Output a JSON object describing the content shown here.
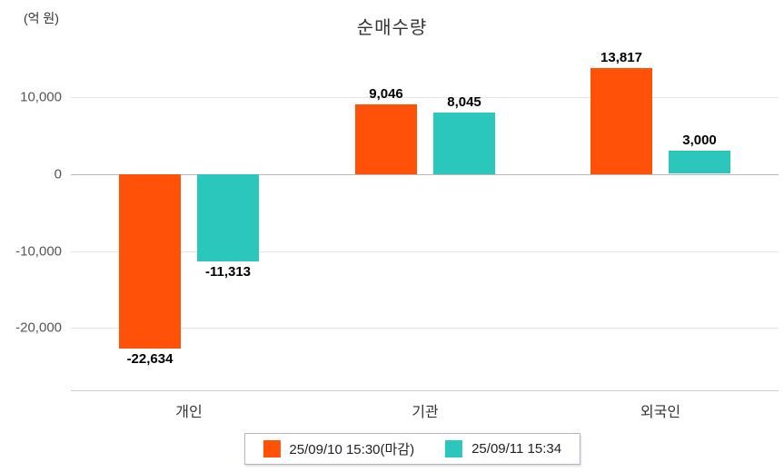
{
  "title": "순매수량",
  "unit_label": "(억 원)",
  "colors": {
    "series1": "#ff5208",
    "series2": "#2bc7bd",
    "grid": "#e4e4e4",
    "zero_line": "#b9b9b9",
    "axis_line": "#cfcfcf"
  },
  "chart_data": {
    "type": "bar",
    "title": "순매수량",
    "ylabel": "(억 원)",
    "xlabel": "",
    "categories": [
      "개인",
      "기관",
      "외국인"
    ],
    "series": [
      {
        "name": "25/09/10 15:30(마감)",
        "color": "#ff5208",
        "values": [
          -22634,
          9046,
          13817
        ],
        "labels": [
          "-22,634",
          "9,046",
          "13,817"
        ]
      },
      {
        "name": "25/09/11 15:34",
        "color": "#2bc7bd",
        "values": [
          -11313,
          8045,
          3000
        ],
        "labels": [
          "-11,313",
          "8,045",
          "3,000"
        ]
      }
    ],
    "yticks": [
      {
        "value": 10000,
        "label": "10,000"
      },
      {
        "value": 0,
        "label": "0"
      },
      {
        "value": -10000,
        "label": "-10,000"
      },
      {
        "value": -20000,
        "label": "-20,000"
      }
    ],
    "ylim": [
      -25500,
      16500
    ],
    "grid": true,
    "legend_position": "bottom"
  }
}
